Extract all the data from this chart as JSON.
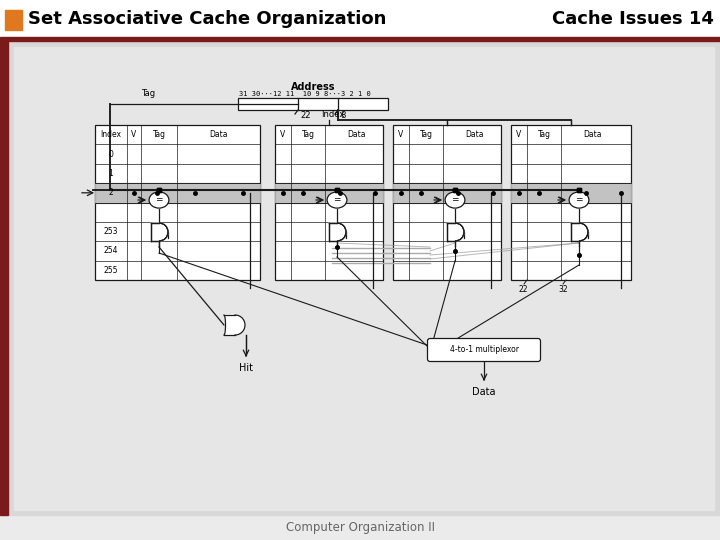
{
  "title_left": "Set Associative Cache Organization",
  "title_right": "Cache Issues 14",
  "footer": "Computer Organization II",
  "slide_bg": "#ebebeb",
  "content_bg": "#d8d8d8",
  "inner_bg": "#e6e6e6",
  "header_bg": "#ffffff",
  "orange_color": "#e07820",
  "dark_red_color": "#7a1a1a",
  "line_color": "#1a1a1a",
  "white": "#ffffff",
  "gray_highlight": "#b8b8b8",
  "title_fontsize": 13,
  "footer_fontsize": 8.5
}
